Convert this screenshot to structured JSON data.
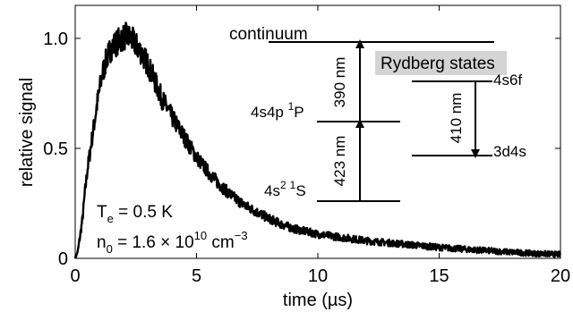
{
  "chart_data": {
    "type": "line",
    "xlabel": "time (µs)",
    "ylabel": "relative signal",
    "xlim": [
      0,
      20
    ],
    "ylim": [
      0,
      1.15
    ],
    "xticks": [
      {
        "value": 0,
        "label": "0"
      },
      {
        "value": 5,
        "label": "5"
      },
      {
        "value": 10,
        "label": "10"
      },
      {
        "value": 15,
        "label": "15"
      },
      {
        "value": 20,
        "label": "20"
      }
    ],
    "yticks": [
      {
        "value": 0,
        "label": "0"
      },
      {
        "value": 0.5,
        "label": "0.5"
      },
      {
        "value": 1.0,
        "label": "1.0"
      }
    ],
    "grid": false,
    "line_color": "#000000",
    "series": [
      {
        "x": [
          0,
          0.1,
          0.2,
          0.3,
          0.4,
          0.5,
          0.7,
          0.9,
          1.1,
          1.3,
          1.5,
          1.7,
          1.9,
          2.1,
          2.3,
          2.5,
          2.7,
          3.0,
          3.3,
          3.6,
          4.0,
          4.5,
          5.0,
          5.5,
          6.0,
          6.5,
          7.0,
          7.5,
          8.0,
          8.5,
          9.0,
          10.0,
          11.0,
          12.0,
          13.0,
          14.0,
          15.0,
          16.0,
          17.0,
          18.0,
          19.0,
          20.0
        ],
        "y": [
          0.0,
          0.03,
          0.1,
          0.18,
          0.3,
          0.4,
          0.55,
          0.7,
          0.83,
          0.91,
          0.96,
          0.98,
          1.0,
          1.01,
          1.0,
          0.97,
          0.94,
          0.88,
          0.8,
          0.72,
          0.64,
          0.55,
          0.46,
          0.39,
          0.33,
          0.28,
          0.24,
          0.21,
          0.18,
          0.155,
          0.135,
          0.11,
          0.095,
          0.08,
          0.07,
          0.06,
          0.05,
          0.042,
          0.035,
          0.028,
          0.022,
          0.018
        ]
      }
    ]
  },
  "annotations": {
    "te": "T",
    "te_sub": "e",
    "te_rest": " = 0.5 K",
    "n0": "n",
    "n0_sub": "0",
    "n0_rest": " = 1.6 × 10",
    "n0_exp": "10",
    "n0_unit": " cm",
    "n0_unit_exp": "−3"
  },
  "levels": {
    "continuum": "continuum",
    "rydberg_states": "Rydberg states",
    "state_4s4p": "4s4p ",
    "state_4s4p_sup": "1",
    "state_4s4p_P": "P",
    "state_4s2": "4s",
    "state_4s2_sup": "2",
    "state_4s2_sup1": "1",
    "state_4s2_S": "S",
    "state_4s6f": "4s6f",
    "state_3d4s": "3d4s",
    "wl_390": "390 nm",
    "wl_423": "423 nm",
    "wl_410": "410 nm"
  }
}
